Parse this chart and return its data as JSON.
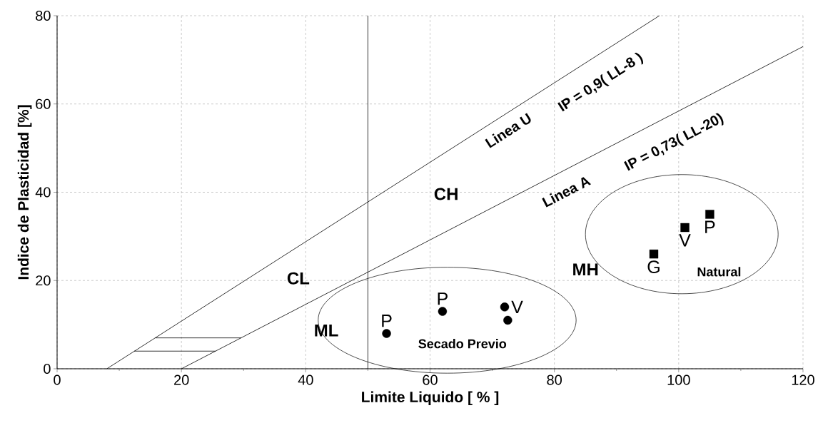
{
  "chart_data": {
    "type": "scatter",
    "xlabel": "Limite Liquido [ % ]",
    "ylabel": "Indice de Plasticidad [%]",
    "xlim": [
      0,
      120
    ],
    "ylim": [
      0,
      80
    ],
    "xticks": [
      0,
      20,
      40,
      60,
      80,
      100,
      120
    ],
    "yticks": [
      0,
      20,
      40,
      60,
      80
    ],
    "grid": true,
    "ref_lines": [
      {
        "axis": "x",
        "value": 50,
        "color": "#000000"
      }
    ],
    "series": [
      {
        "type": "line",
        "x": [
          8,
          96.9
        ],
        "values": [
          0,
          80
        ],
        "color": "#000000"
      },
      {
        "type": "line",
        "x": [
          20,
          120
        ],
        "values": [
          0,
          73
        ],
        "color": "#000000"
      },
      {
        "type": "line",
        "x": [
          12.4,
          25.5
        ],
        "values": [
          4,
          4
        ],
        "color": "#000000"
      },
      {
        "type": "line",
        "x": [
          15.8,
          29.6
        ],
        "values": [
          7,
          7
        ],
        "color": "#000000"
      },
      {
        "type": "scatter",
        "x": [
          53,
          62,
          72,
          72.5
        ],
        "values": [
          8,
          13,
          14,
          11
        ],
        "color": "#000000",
        "marker": "circle",
        "value_labels": [
          "P",
          "P",
          "V",
          null
        ]
      },
      {
        "type": "scatter",
        "x": [
          96,
          101,
          105
        ],
        "values": [
          26,
          32,
          35
        ],
        "color": "#000000",
        "marker": "square",
        "value_labels": [
          "G",
          "V",
          "P"
        ]
      }
    ],
    "annotations": [
      "CL",
      "CH",
      "ML",
      "MH",
      "Linea U",
      "IP = 0,9( LL-8 )",
      "Linea A",
      "IP = 0,73( LL-20)",
      "Secado Previo",
      "Natural"
    ]
  }
}
